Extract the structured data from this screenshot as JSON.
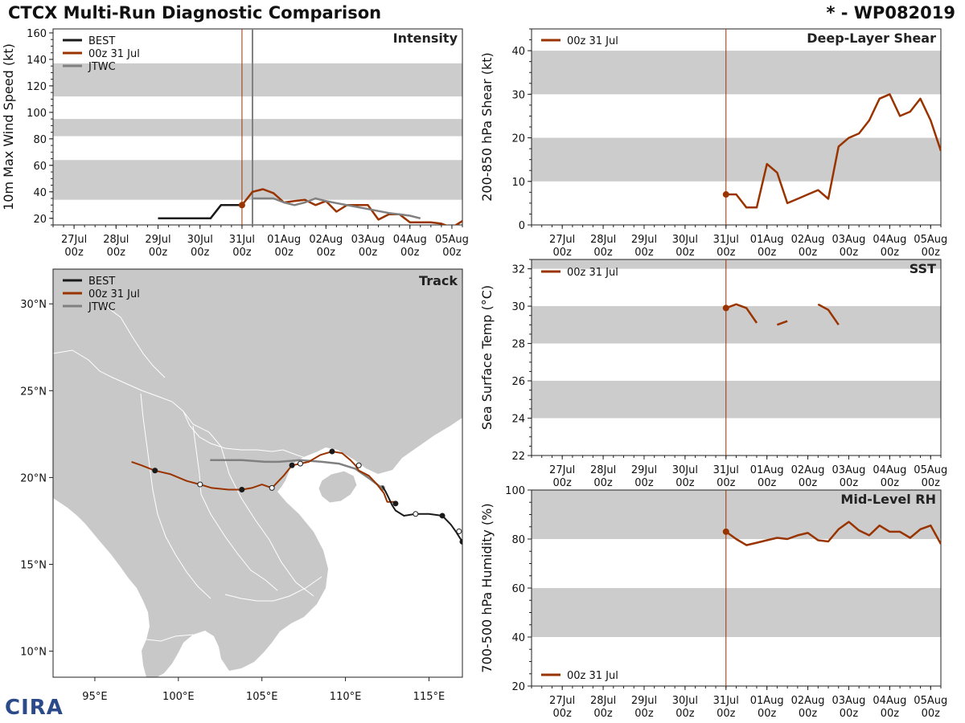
{
  "header": {
    "title": "CTCX Multi-Run Diagnostic Comparison",
    "storm_id": "* - WP082019"
  },
  "logo_text": "CIRA",
  "colors": {
    "best": "#1a1a1a",
    "run": "#993300",
    "jtwc": "#808080",
    "band": "#cccccc",
    "land": "#c8c8c8",
    "border": "#ffffff"
  },
  "time_axis": {
    "ticks": [
      {
        "d": "27Jul",
        "h": "00z"
      },
      {
        "d": "28Jul",
        "h": "00z"
      },
      {
        "d": "29Jul",
        "h": "00z"
      },
      {
        "d": "30Jul",
        "h": "00z"
      },
      {
        "d": "31Jul",
        "h": "00z"
      },
      {
        "d": "01Aug",
        "h": "00z"
      },
      {
        "d": "02Aug",
        "h": "00z"
      },
      {
        "d": "03Aug",
        "h": "00z"
      },
      {
        "d": "04Aug",
        "h": "00z"
      },
      {
        "d": "05Aug",
        "h": "00z"
      }
    ]
  },
  "chart_data": [
    {
      "id": "intensity",
      "type": "line",
      "title": "Intensity",
      "ylabel": "10m Max Wind Speed (kt)",
      "xlim": [
        -0.5,
        9.25
      ],
      "ylim": [
        15,
        163
      ],
      "yticks": [
        20,
        40,
        60,
        80,
        100,
        120,
        140,
        160
      ],
      "bands": [
        [
          34,
          64
        ],
        [
          82,
          95
        ],
        [
          112,
          137
        ]
      ],
      "vlines": [
        4.0,
        4.25
      ],
      "legend": [
        "BEST",
        "00z 31 Jul",
        "JTWC"
      ],
      "series": [
        {
          "name": "BEST",
          "key": "best",
          "x": [
            2.0,
            2.25,
            2.5,
            2.75,
            3.0,
            3.25,
            3.5,
            3.75,
            4.0
          ],
          "y": [
            20,
            20,
            20,
            20,
            20,
            20,
            30,
            30,
            30
          ]
        },
        {
          "name": "00z 31 Jul",
          "key": "run",
          "x": [
            4.0,
            4.25,
            4.5,
            4.75,
            5.0,
            5.25,
            5.5,
            5.75,
            6.0,
            6.25,
            6.5,
            6.75,
            7.0,
            7.25,
            7.5,
            7.75,
            8.0,
            8.25,
            8.5,
            8.75,
            9.0,
            9.25
          ],
          "y": [
            30,
            40,
            42,
            39,
            32,
            33,
            34,
            30,
            33,
            25,
            30,
            30,
            30,
            19,
            23,
            23,
            17,
            17,
            17,
            16,
            13,
            18
          ],
          "marker_x": 4.0,
          "marker_y": 30
        },
        {
          "name": "JTWC",
          "key": "jtwc",
          "x": [
            4.25,
            4.75,
            5.0,
            5.25,
            5.5,
            5.75,
            6.0,
            6.5,
            7.0,
            7.5,
            8.0,
            8.25
          ],
          "y": [
            35,
            35,
            32,
            30,
            32,
            35,
            33,
            30,
            27,
            24,
            22,
            20
          ]
        }
      ]
    },
    {
      "id": "shear",
      "type": "line",
      "title": "Deep-Layer Shear",
      "ylabel": "200-850 hPa Shear (kt)",
      "xlim": [
        -0.75,
        9.25
      ],
      "ylim": [
        0,
        45
      ],
      "yticks": [
        0,
        10,
        20,
        30,
        40
      ],
      "bands": [
        [
          10,
          20
        ],
        [
          30,
          40
        ]
      ],
      "vlines": [
        4.0
      ],
      "legend": [
        "00z 31 Jul"
      ],
      "series": [
        {
          "name": "00z 31 Jul",
          "key": "run",
          "x": [
            4.0,
            4.25,
            4.5,
            4.75,
            5.0,
            5.25,
            5.5,
            5.75,
            6.0,
            6.25,
            6.5,
            6.75,
            7.0,
            7.25,
            7.5,
            7.75,
            8.0,
            8.25,
            8.5,
            8.75,
            9.0,
            9.25
          ],
          "y": [
            7,
            7,
            4,
            4,
            14,
            12,
            5,
            6,
            7,
            8,
            6,
            18,
            20,
            21,
            24,
            29,
            30,
            25,
            26,
            29,
            24,
            17
          ],
          "marker_x": 4.0,
          "marker_y": 7
        }
      ]
    },
    {
      "id": "sst",
      "type": "line",
      "title": "SST",
      "ylabel": "Sea Surface Temp (°C)",
      "xlim": [
        -0.75,
        9.25
      ],
      "ylim": [
        22,
        32.5
      ],
      "yticks": [
        22,
        24,
        26,
        28,
        30,
        32
      ],
      "bands": [
        [
          24,
          26
        ],
        [
          28,
          30
        ],
        [
          32,
          34
        ]
      ],
      "vlines": [
        4.0
      ],
      "legend": [
        "00z 31 Jul"
      ],
      "series": [
        {
          "name": "00z 31 Jul",
          "key": "run",
          "segments": [
            {
              "x": [
                4.0,
                4.25,
                4.5,
                4.75
              ],
              "y": [
                29.9,
                30.1,
                29.9,
                29.1
              ]
            },
            {
              "x": [
                5.25,
                5.5
              ],
              "y": [
                29.0,
                29.2
              ]
            },
            {
              "x": [
                6.25,
                6.5,
                6.75
              ],
              "y": [
                30.1,
                29.8,
                29.0
              ]
            }
          ],
          "marker_x": 4.0,
          "marker_y": 29.9
        }
      ]
    },
    {
      "id": "rh",
      "type": "line",
      "title": "Mid-Level RH",
      "ylabel": "700-500 hPa Humidity (%)",
      "xlim": [
        -0.75,
        9.25
      ],
      "ylim": [
        20,
        100
      ],
      "yticks": [
        20,
        40,
        60,
        80,
        100
      ],
      "bands": [
        [
          40,
          60
        ],
        [
          80,
          100
        ]
      ],
      "vlines": [
        4.0
      ],
      "legend": [
        "00z 31 Jul"
      ],
      "series": [
        {
          "name": "00z 31 Jul",
          "key": "run",
          "x": [
            4.0,
            4.25,
            4.5,
            4.75,
            5.0,
            5.25,
            5.5,
            5.75,
            6.0,
            6.25,
            6.5,
            6.75,
            7.0,
            7.25,
            7.5,
            7.75,
            8.0,
            8.25,
            8.5,
            8.75,
            9.0,
            9.25
          ],
          "y": [
            83,
            80,
            77.5,
            78.5,
            79.5,
            80.5,
            80,
            81.5,
            82.5,
            79.5,
            79,
            84,
            87,
            83.5,
            81.5,
            85.5,
            83,
            83,
            80.5,
            84,
            85.5,
            78
          ],
          "marker_x": 4.0,
          "marker_y": 83
        }
      ]
    },
    {
      "id": "track",
      "type": "scatter",
      "title": "Track",
      "xlim": [
        92.5,
        117
      ],
      "ylim": [
        8.5,
        32
      ],
      "xticks": [
        95,
        100,
        105,
        110,
        115
      ],
      "xtick_labels": [
        "95°E",
        "100°E",
        "105°E",
        "110°E",
        "115°E"
      ],
      "yticks": [
        10,
        15,
        20,
        25,
        30
      ],
      "ytick_labels": [
        "10°N",
        "15°N",
        "20°N",
        "25°N",
        "30°N"
      ],
      "legend": [
        "BEST",
        "00z 31 Jul",
        "JTWC"
      ],
      "series": [
        {
          "name": "BEST",
          "key": "best",
          "lon": [
            117.0,
            116.8,
            116.6,
            116.3,
            116.0,
            115.8,
            115.0,
            114.2,
            113.5,
            113.0,
            112.8,
            112.6,
            112.4,
            112.2
          ],
          "lat": [
            16.3,
            16.6,
            16.9,
            17.3,
            17.6,
            17.8,
            17.9,
            17.9,
            17.8,
            18.1,
            18.4,
            18.8,
            19.2,
            19.5
          ],
          "filled": [
            [
              117.0,
              16.3
            ],
            [
              115.8,
              17.8
            ]
          ],
          "open": [
            [
              116.8,
              16.9
            ],
            [
              114.2,
              17.9
            ]
          ]
        },
        {
          "name": "00z 31 Jul",
          "key": "run",
          "lon": [
            113.0,
            112.9,
            112.5,
            112.3,
            111.9,
            111.4,
            110.8,
            110.6,
            110.3,
            109.8,
            109.2,
            108.5,
            107.8,
            107.3,
            106.8,
            106.3,
            105.6,
            105.0,
            104.4,
            103.8,
            103.0,
            102.0,
            101.3,
            100.5,
            99.5,
            98.6,
            97.8,
            97.2
          ],
          "lat": [
            18.5,
            18.6,
            18.6,
            19.1,
            19.6,
            20.1,
            20.4,
            20.7,
            21.0,
            21.4,
            21.5,
            21.3,
            20.9,
            20.8,
            20.7,
            20.1,
            19.4,
            19.6,
            19.4,
            19.3,
            19.3,
            19.4,
            19.6,
            19.8,
            20.2,
            20.4,
            20.7,
            20.9
          ],
          "filled": [
            [
              113.0,
              18.5
            ],
            [
              109.2,
              21.5
            ],
            [
              106.8,
              20.7
            ],
            [
              103.8,
              19.3
            ],
            [
              98.6,
              20.4
            ]
          ],
          "open": [
            [
              110.8,
              20.7
            ],
            [
              107.3,
              20.8
            ],
            [
              105.6,
              19.4
            ],
            [
              101.3,
              19.6
            ]
          ]
        },
        {
          "name": "JTWC",
          "key": "jtwc",
          "lon": [
            112.3,
            111.5,
            110.6,
            109.6,
            108.6,
            107.3,
            106.0,
            105.2,
            103.8,
            101.9
          ],
          "lat": [
            19.3,
            19.9,
            20.5,
            20.8,
            20.9,
            21.0,
            20.9,
            20.9,
            21.0,
            21.0
          ],
          "filled": [
            [
              112.2,
              19.4
            ]
          ],
          "open": []
        }
      ]
    }
  ]
}
